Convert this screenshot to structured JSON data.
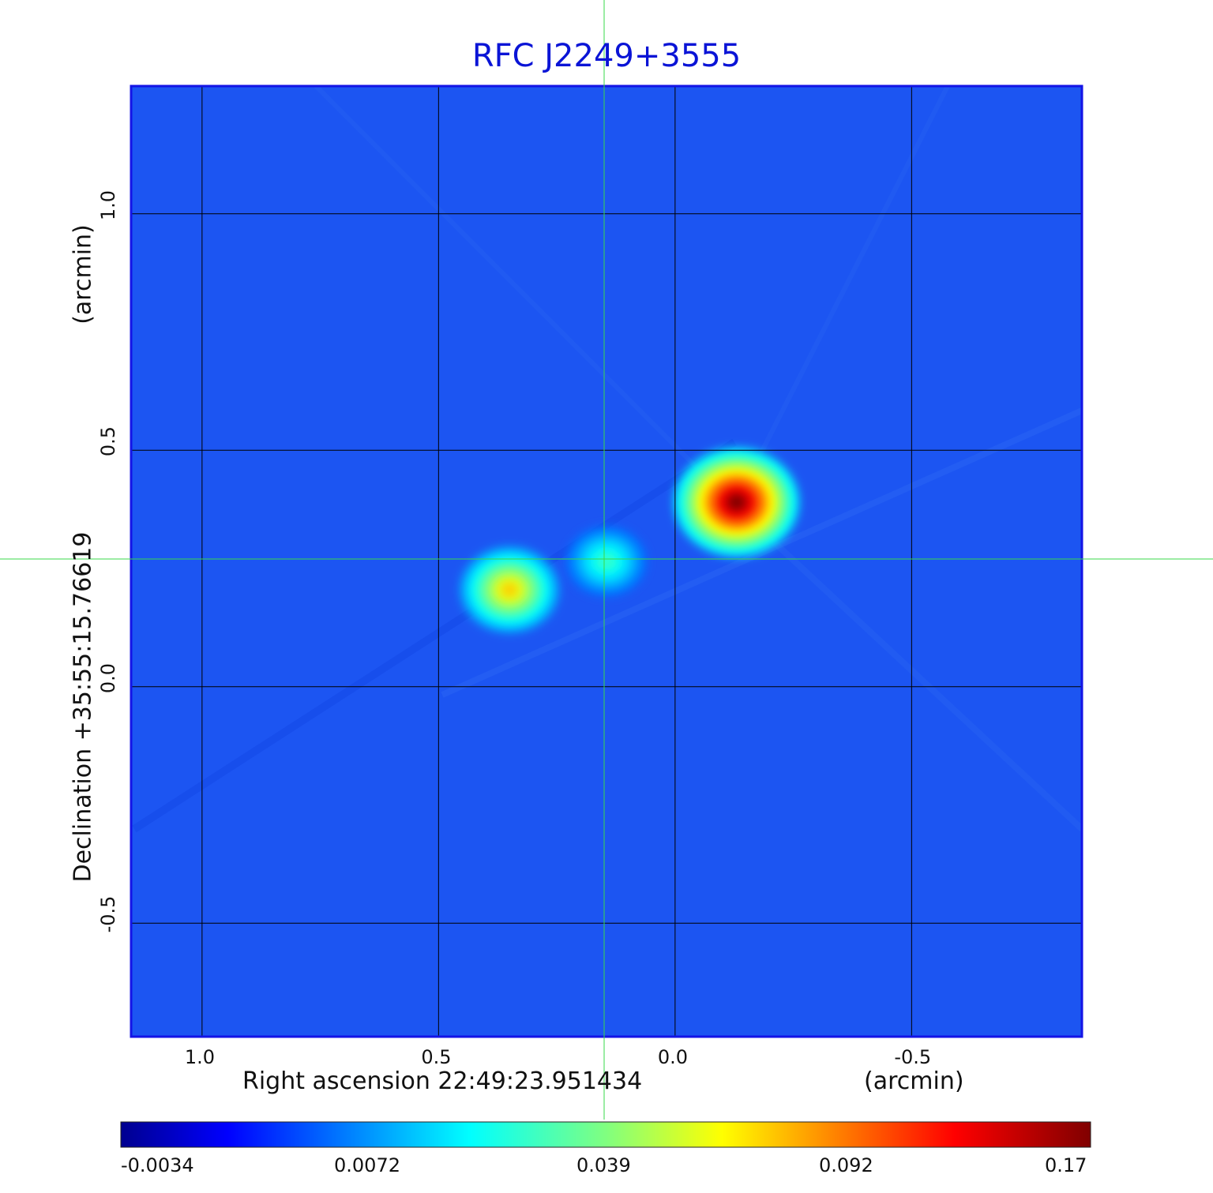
{
  "chart_data": {
    "type": "heatmap",
    "title": "RFC J2249+3555",
    "xlabel": "Right ascension  22:49:23.951434",
    "xunit": "(arcmin)",
    "ylabel": "Declination  +35:55:15.76619",
    "yunit": "(arcmin)",
    "xlim": [
      1.15,
      -0.86
    ],
    "ylim": [
      -0.74,
      1.27
    ],
    "x_ticks": [
      1.0,
      0.5,
      0.0,
      -0.5
    ],
    "x_tick_labels": [
      "1.0",
      "0.5",
      "0.0",
      "-0.5"
    ],
    "y_ticks": [
      1.0,
      0.5,
      0.0,
      -0.5
    ],
    "y_tick_labels": [
      "1.0",
      "0.5",
      "0.0",
      "-0.5"
    ],
    "grid": true,
    "crosshair": {
      "x": 0.15,
      "y": 0.27,
      "color": "#39d94a"
    },
    "colormap": "jet",
    "colorbar": {
      "ticks": [
        -0.0034,
        0.0072,
        0.039,
        0.092,
        0.17
      ],
      "labels": [
        "-0.0034",
        "0.0072",
        "0.039",
        "0.092",
        "0.17"
      ],
      "position": "bottom"
    },
    "background_value": 0.003,
    "sources": [
      {
        "x": -0.13,
        "y": 0.39,
        "peak": 0.17
      },
      {
        "x": 0.35,
        "y": 0.205,
        "peak": 0.075
      },
      {
        "x": 0.145,
        "y": 0.265,
        "peak": 0.03
      }
    ],
    "colors": {
      "title": "#0a14d6",
      "frame": "#1414e6",
      "grid": "#000000"
    }
  }
}
